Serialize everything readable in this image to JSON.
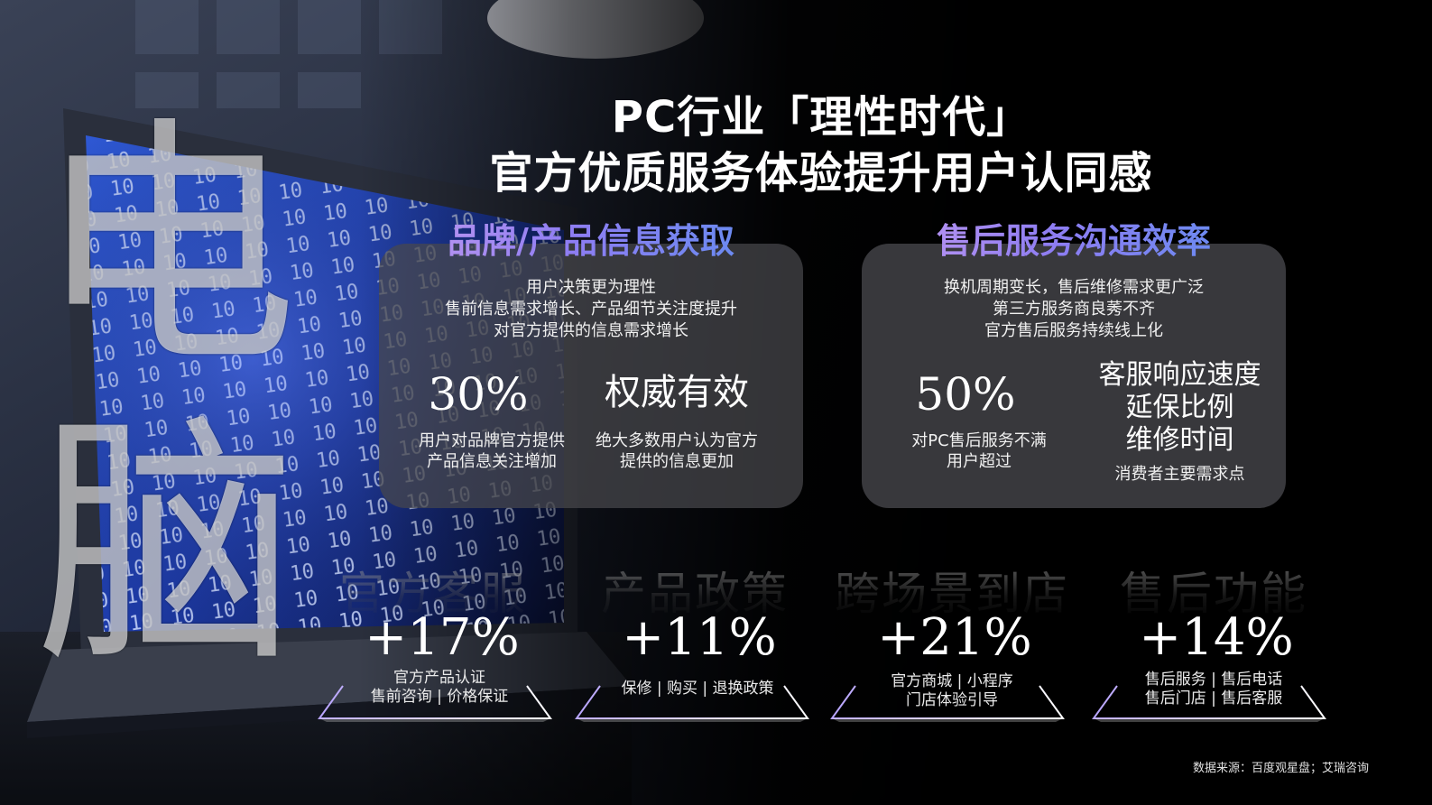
{
  "title": {
    "line1": "PC行业「理性时代」",
    "line2": "官方优质服务体验提升用户认同感"
  },
  "watermark": [
    "电",
    "脑"
  ],
  "left_panel": {
    "heading": "品牌/产品信息获取",
    "desc": [
      "用户决策更为理性",
      "售前信息需求增长、产品细节关注度提升",
      "对官方提供的信息需求增长"
    ],
    "stat1": {
      "value": "30%",
      "caption": [
        "用户对品牌官方提供",
        "产品信息关注增加"
      ]
    },
    "stat2": {
      "value": "权威有效",
      "caption": [
        "绝大多数用户认为官方",
        "提供的信息更加"
      ]
    }
  },
  "right_panel": {
    "heading": "售后服务沟通效率",
    "desc": [
      "换机周期变长，售后维修需求更广泛",
      "第三方服务商良莠不齐",
      "官方售后服务持续线上化"
    ],
    "stat1": {
      "value": "50%",
      "caption": [
        "对PC售后服务不满",
        "用户超过"
      ]
    },
    "stat2": {
      "lines": [
        "客服响应速度",
        "延保比例",
        "维修时间"
      ],
      "caption": "消费者主要需求点"
    }
  },
  "categories": [
    {
      "name": "官方客服",
      "pct": "+17%",
      "sub": [
        "官方产品认证",
        "售前咨询 | 价格保证"
      ]
    },
    {
      "name": "产品政策",
      "pct": "+11%",
      "sub": [
        "保修 | 购买 | 退换政策"
      ]
    },
    {
      "name": "跨场景到店",
      "pct": "+21%",
      "sub": [
        "官方商城 | 小程序",
        "门店体验引导"
      ]
    },
    {
      "name": "售后功能",
      "pct": "+14%",
      "sub": [
        "售后服务 | 售后电话",
        "售后门店 | 售后客服"
      ]
    }
  ],
  "source": "数据来源：百度观星盘；艾瑞咨询",
  "colors": {
    "background": "#000000",
    "panel": "#48484c",
    "heading_gradient_start": "#c59cf0",
    "heading_gradient_end": "#5e8ff0",
    "screen_blue": "#1f3fb0"
  }
}
